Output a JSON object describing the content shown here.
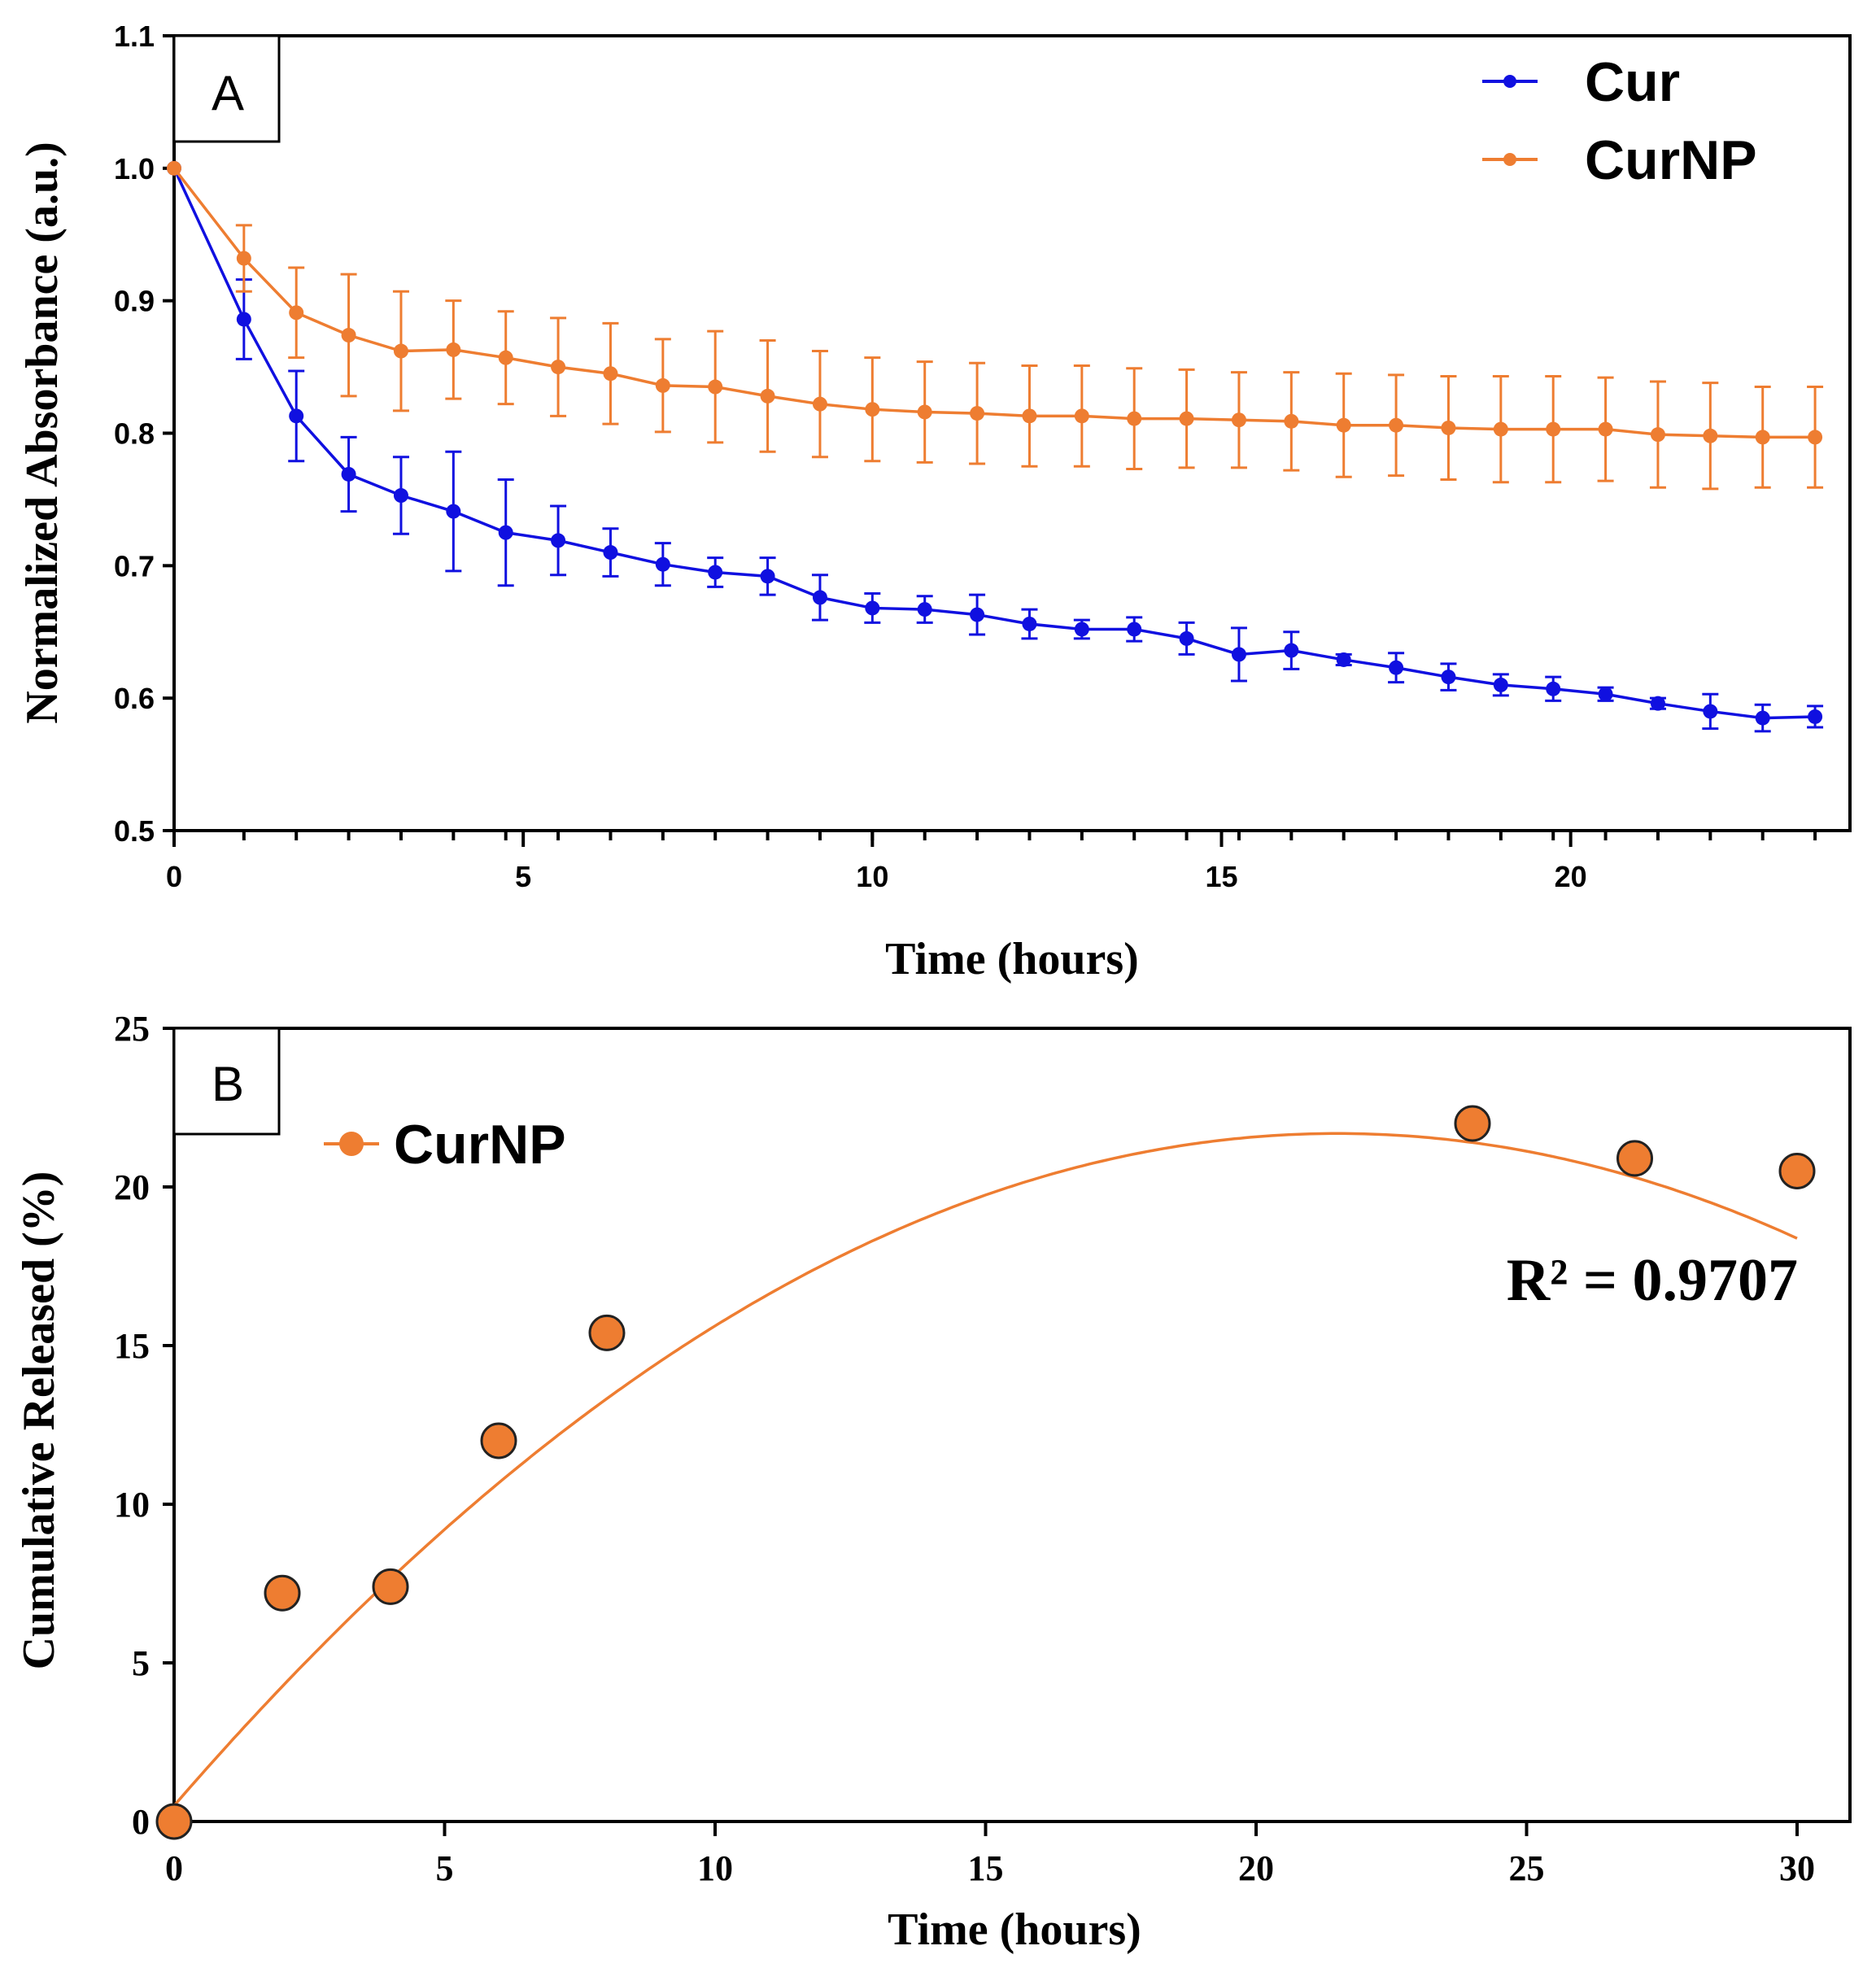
{
  "colors": {
    "cur": "#1010e0",
    "curnp": "#ee7d31",
    "axis": "#000000"
  },
  "chart_data": [
    {
      "type": "line",
      "panel_label": "A",
      "xlabel": "Time (hours)",
      "ylabel": "Normalized Absorbance (a.u.)",
      "xlim": [
        0,
        24
      ],
      "ylim": [
        0.5,
        1.1
      ],
      "xticks": [
        0,
        5,
        10,
        15,
        20
      ],
      "xtick_labels": [
        "0",
        "5",
        "10",
        "15",
        "20"
      ],
      "yticks": [
        0.5,
        0.6,
        0.7,
        0.8,
        0.9,
        1.0,
        1.1
      ],
      "ytick_labels": [
        "0.5",
        "0.6",
        "0.7",
        "0.8",
        "0.9",
        "1.0",
        "1.1"
      ],
      "legend": [
        "Cur",
        "CurNP"
      ],
      "legend_position": "top-right",
      "x": [
        0,
        1,
        1.75,
        2.5,
        3.25,
        4,
        4.75,
        5.5,
        6.25,
        7,
        7.75,
        8.5,
        9.25,
        10,
        10.75,
        11.5,
        12.25,
        13,
        13.75,
        14.5,
        15.25,
        16,
        16.75,
        17.5,
        18.25,
        19,
        19.75,
        20.5,
        21.25,
        22,
        22.75,
        23.5
      ],
      "series": [
        {
          "name": "Cur",
          "color": "#1010e0",
          "values": [
            1.0,
            0.886,
            0.813,
            0.769,
            0.753,
            0.741,
            0.725,
            0.719,
            0.71,
            0.701,
            0.695,
            0.692,
            0.676,
            0.668,
            0.667,
            0.663,
            0.656,
            0.652,
            0.652,
            0.645,
            0.633,
            0.636,
            0.629,
            0.623,
            0.616,
            0.61,
            0.607,
            0.603,
            0.596,
            0.59,
            0.585,
            0.586
          ],
          "errors": [
            0.0,
            0.03,
            0.034,
            0.028,
            0.029,
            0.045,
            0.04,
            0.026,
            0.018,
            0.016,
            0.011,
            0.014,
            0.017,
            0.011,
            0.01,
            0.015,
            0.011,
            0.007,
            0.009,
            0.012,
            0.02,
            0.014,
            0.004,
            0.011,
            0.01,
            0.008,
            0.009,
            0.005,
            0.004,
            0.013,
            0.01,
            0.008
          ]
        },
        {
          "name": "CurNP",
          "color": "#ee7d31",
          "values": [
            1.0,
            0.932,
            0.891,
            0.874,
            0.862,
            0.863,
            0.857,
            0.85,
            0.845,
            0.836,
            0.835,
            0.828,
            0.822,
            0.818,
            0.816,
            0.815,
            0.813,
            0.813,
            0.811,
            0.811,
            0.81,
            0.809,
            0.806,
            0.806,
            0.804,
            0.803,
            0.803,
            0.803,
            0.799,
            0.798,
            0.797,
            0.797
          ],
          "errors": [
            0.0,
            0.025,
            0.034,
            0.046,
            0.045,
            0.037,
            0.035,
            0.037,
            0.038,
            0.035,
            0.042,
            0.042,
            0.04,
            0.039,
            0.038,
            0.038,
            0.038,
            0.038,
            0.038,
            0.037,
            0.036,
            0.037,
            0.039,
            0.038,
            0.039,
            0.04,
            0.04,
            0.039,
            0.04,
            0.04,
            0.038,
            0.038
          ]
        }
      ]
    },
    {
      "type": "scatter",
      "panel_label": "B",
      "xlabel": "Time (hours)",
      "ylabel": "Cumulative  Released (%)",
      "xlim": [
        0,
        30
      ],
      "ylim": [
        0,
        25
      ],
      "xticks": [
        0,
        5,
        10,
        15,
        20,
        25,
        30
      ],
      "xtick_labels": [
        "0",
        "5",
        "10",
        "15",
        "20",
        "25",
        "30"
      ],
      "yticks": [
        0,
        5,
        10,
        15,
        20,
        25
      ],
      "ytick_labels": [
        "0",
        "5",
        "10",
        "15",
        "20",
        "25"
      ],
      "legend": [
        "CurNP"
      ],
      "legend_position": "top-left",
      "annotation": "R² = 0.9707",
      "series": [
        {
          "name": "CurNP",
          "color": "#ee7d31",
          "x": [
            0,
            2,
            4,
            6,
            8,
            24,
            27,
            30
          ],
          "values": [
            0,
            7.2,
            7.4,
            12.0,
            15.4,
            22.0,
            20.9,
            20.5
          ]
        }
      ],
      "fit": {
        "type": "polynomial",
        "degree": 2,
        "coefficients": [
          0.5,
          1.97,
          -0.0458
        ]
      }
    }
  ]
}
